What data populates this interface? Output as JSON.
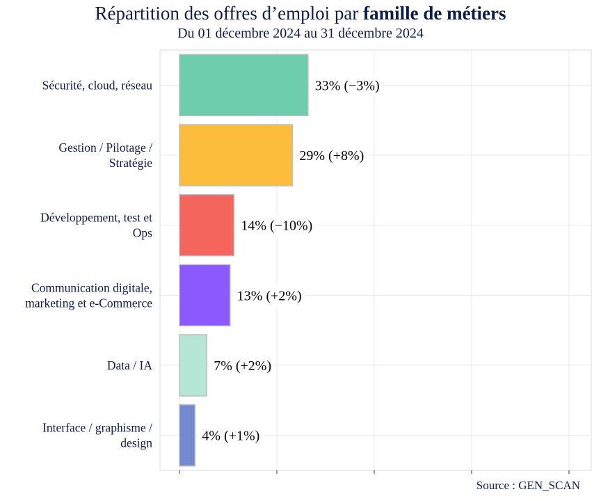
{
  "title_regular": "Répartition des offres d’emploi par ",
  "title_bold": "famille de métiers",
  "subtitle": "Du 01 décembre 2024 au 31 décembre 2024",
  "source": "Source : GEN_SCAN",
  "chart_data": {
    "type": "bar",
    "orientation": "horizontal",
    "title": "Répartition des offres d’emploi par famille de métiers",
    "subtitle": "Du 01 décembre 2024 au 31 décembre 2024",
    "xlabel": "",
    "ylabel": "",
    "xlim": [
      0,
      100
    ],
    "grid": true,
    "legend": "none",
    "categories": [
      [
        "Sécurité, cloud, réseau"
      ],
      [
        "Gestion / Pilotage /",
        "Stratégie"
      ],
      [
        "Développement, test et",
        "Ops"
      ],
      [
        "Communication digitale,",
        "marketing et e-Commerce"
      ],
      [
        "Data / IA"
      ],
      [
        "Interface / graphisme /",
        "design"
      ]
    ],
    "values": [
      33,
      29,
      14,
      13,
      7,
      4
    ],
    "labels": [
      "33% (−3%)",
      "29% (+8%)",
      "14% (−10%)",
      "13% (+2%)",
      "7% (+2%)",
      "4% (+1%)"
    ],
    "colors": [
      "#6dcdad",
      "#fbbd3b",
      "#f4665b",
      "#8b59fe",
      "#b5e6d6",
      "#7389d0"
    ]
  }
}
